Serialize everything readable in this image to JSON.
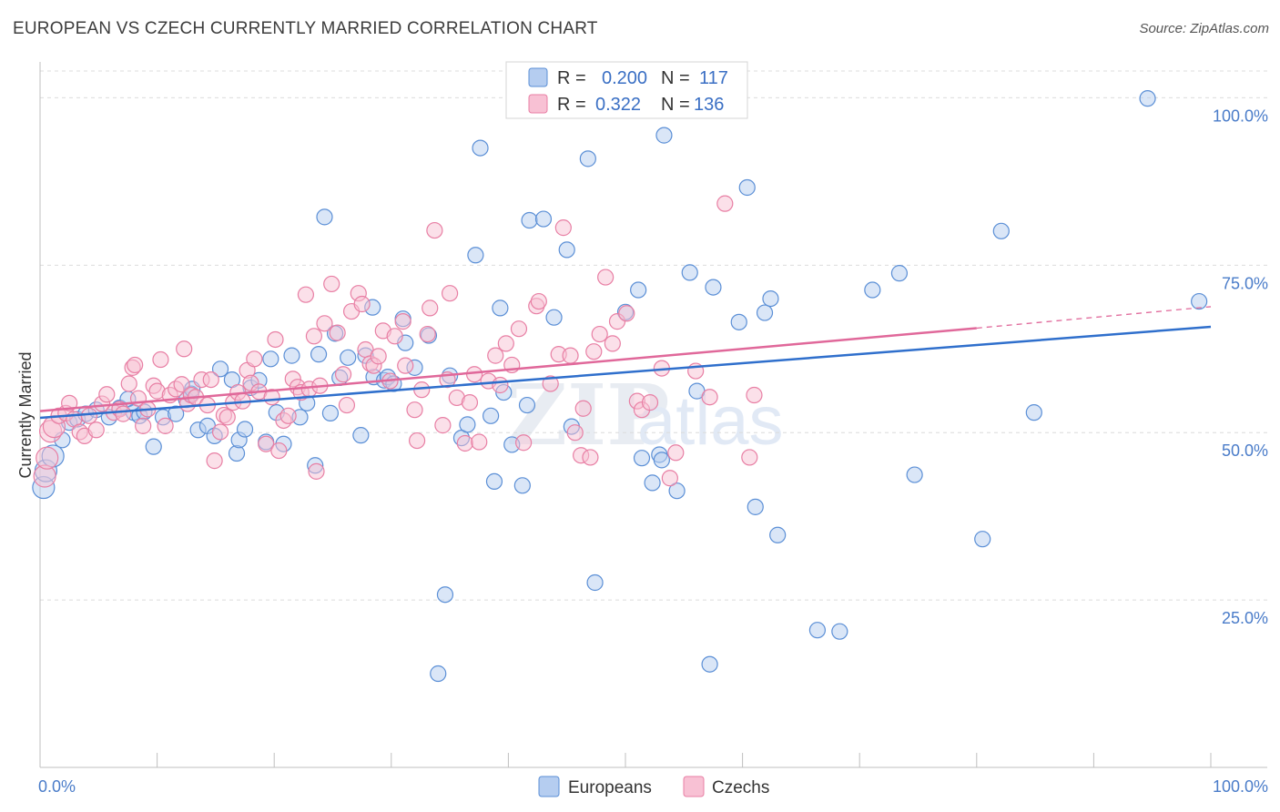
{
  "header": {
    "title": "EUROPEAN VS CZECH CURRENTLY MARRIED CORRELATION CHART",
    "source": "Source: ZipAtlas.com"
  },
  "watermark": {
    "zip": "ZIP",
    "atlas": "atlas"
  },
  "chart_data": {
    "type": "scatter",
    "title": "EUROPEAN VS CZECH CURRENTLY MARRIED CORRELATION CHART",
    "xlabel": "",
    "ylabel": "Currently Married",
    "xlim": [
      0,
      100
    ],
    "ylim": [
      0,
      104
    ],
    "x_tick_labels": [
      "0.0%",
      "100.0%"
    ],
    "y_ticks": [
      25,
      50,
      75,
      100
    ],
    "y_tick_labels": [
      "25.0%",
      "50.0%",
      "75.0%",
      "100.0%"
    ],
    "grid": true,
    "legend_position": "top-center",
    "series": [
      {
        "name": "Europeans",
        "color": "#5b8fd6",
        "fill": "#b5cdf0",
        "stats": {
          "r_label": "R =",
          "r": "0.200",
          "n_label": "N =",
          "n": "117"
        },
        "trend": {
          "x": [
            0,
            100
          ],
          "y": [
            52.2,
            65.8
          ]
        },
        "points": [
          [
            0.3,
            41.8
          ],
          [
            0.5,
            44.3
          ],
          [
            1.1,
            46.5
          ],
          [
            1.9,
            48.9
          ],
          [
            2.5,
            51.5
          ],
          [
            3.2,
            52.0
          ],
          [
            3.9,
            52.8
          ],
          [
            4.8,
            53.4
          ],
          [
            5.9,
            52.3
          ],
          [
            6.8,
            53.7
          ],
          [
            7.5,
            55.0
          ],
          [
            8.0,
            53.0
          ],
          [
            8.5,
            52.5
          ],
          [
            8.9,
            53.1
          ],
          [
            9.7,
            47.9
          ],
          [
            10.5,
            52.3
          ],
          [
            11.6,
            52.8
          ],
          [
            12.5,
            54.9
          ],
          [
            12.9,
            55.8
          ],
          [
            13.0,
            56.5
          ],
          [
            13.5,
            50.4
          ],
          [
            14.3,
            51.0
          ],
          [
            14.9,
            49.5
          ],
          [
            15.4,
            59.5
          ],
          [
            16.4,
            57.9
          ],
          [
            16.8,
            46.9
          ],
          [
            17.0,
            48.9
          ],
          [
            17.5,
            50.5
          ],
          [
            18.0,
            56.7
          ],
          [
            18.7,
            57.8
          ],
          [
            19.3,
            48.6
          ],
          [
            19.7,
            61.0
          ],
          [
            20.2,
            53.0
          ],
          [
            20.8,
            48.3
          ],
          [
            21.5,
            61.5
          ],
          [
            22.2,
            52.3
          ],
          [
            22.8,
            54.4
          ],
          [
            23.5,
            45.1
          ],
          [
            23.8,
            61.7
          ],
          [
            24.3,
            82.2
          ],
          [
            24.8,
            52.9
          ],
          [
            25.2,
            64.8
          ],
          [
            25.6,
            58.2
          ],
          [
            26.3,
            61.2
          ],
          [
            27.4,
            49.6
          ],
          [
            27.8,
            61.5
          ],
          [
            28.5,
            58.3
          ],
          [
            28.4,
            68.7
          ],
          [
            29.4,
            57.8
          ],
          [
            29.7,
            58.3
          ],
          [
            30.2,
            57.3
          ],
          [
            31.0,
            67.0
          ],
          [
            31.2,
            63.4
          ],
          [
            32.0,
            59.7
          ],
          [
            33.2,
            64.5
          ],
          [
            34.0,
            14.0
          ],
          [
            34.6,
            25.8
          ],
          [
            35.0,
            58.5
          ],
          [
            36.0,
            49.2
          ],
          [
            36.5,
            51.2
          ],
          [
            37.2,
            76.5
          ],
          [
            37.6,
            92.5
          ],
          [
            38.5,
            52.5
          ],
          [
            38.8,
            42.7
          ],
          [
            39.3,
            68.6
          ],
          [
            39.6,
            56.0
          ],
          [
            40.3,
            48.2
          ],
          [
            41.2,
            42.1
          ],
          [
            41.6,
            54.1
          ],
          [
            41.8,
            81.7
          ],
          [
            43.0,
            81.9
          ],
          [
            43.9,
            67.2
          ],
          [
            45.0,
            77.3
          ],
          [
            45.4,
            50.9
          ],
          [
            46.8,
            90.9
          ],
          [
            47.4,
            27.6
          ],
          [
            47.8,
            98.6
          ],
          [
            50.0,
            68.0
          ],
          [
            51.1,
            71.3
          ],
          [
            51.4,
            46.2
          ],
          [
            52.3,
            42.5
          ],
          [
            52.9,
            46.7
          ],
          [
            53.1,
            45.9
          ],
          [
            53.3,
            94.4
          ],
          [
            54.4,
            41.3
          ],
          [
            55.5,
            73.9
          ],
          [
            56.1,
            56.2
          ],
          [
            57.2,
            15.4
          ],
          [
            57.5,
            71.7
          ],
          [
            59.7,
            66.5
          ],
          [
            60.4,
            86.6
          ],
          [
            61.1,
            38.9
          ],
          [
            61.9,
            67.9
          ],
          [
            62.4,
            70.0
          ],
          [
            63.0,
            34.7
          ],
          [
            66.4,
            20.5
          ],
          [
            68.3,
            20.3
          ],
          [
            71.1,
            71.3
          ],
          [
            73.4,
            73.8
          ],
          [
            74.7,
            43.7
          ],
          [
            80.5,
            34.1
          ],
          [
            82.1,
            80.1
          ],
          [
            84.9,
            53.0
          ],
          [
            94.6,
            99.9
          ],
          [
            99.0,
            69.6
          ]
        ]
      },
      {
        "name": "Czechs",
        "color": "#e87fa4",
        "fill": "#f8c1d4",
        "stats": {
          "r_label": "R =",
          "r": "0.322",
          "n_label": "N =",
          "n": "136"
        },
        "trend": {
          "x": [
            0,
            80,
            100
          ],
          "y": [
            53.2,
            65.6,
            68.8
          ]
        },
        "points": [
          [
            0.4,
            43.5
          ],
          [
            0.6,
            46.2
          ],
          [
            0.9,
            50.2
          ],
          [
            1.2,
            50.9
          ],
          [
            1.6,
            52.5
          ],
          [
            2.2,
            52.9
          ],
          [
            2.5,
            54.4
          ],
          [
            2.9,
            52.0
          ],
          [
            3.4,
            50.1
          ],
          [
            3.8,
            49.5
          ],
          [
            4.2,
            52.5
          ],
          [
            4.8,
            50.4
          ],
          [
            5.3,
            54.3
          ],
          [
            5.7,
            55.7
          ],
          [
            6.3,
            53.0
          ],
          [
            6.8,
            53.5
          ],
          [
            7.1,
            52.8
          ],
          [
            7.6,
            57.3
          ],
          [
            7.9,
            59.7
          ],
          [
            8.1,
            60.1
          ],
          [
            8.4,
            55.1
          ],
          [
            8.8,
            51.0
          ],
          [
            9.2,
            53.5
          ],
          [
            9.7,
            57.0
          ],
          [
            10.0,
            56.2
          ],
          [
            10.3,
            60.9
          ],
          [
            10.7,
            51.0
          ],
          [
            11.1,
            55.6
          ],
          [
            11.6,
            56.5
          ],
          [
            12.1,
            57.2
          ],
          [
            12.3,
            62.5
          ],
          [
            12.6,
            54.3
          ],
          [
            12.9,
            55.6
          ],
          [
            13.3,
            55.3
          ],
          [
            13.8,
            57.9
          ],
          [
            14.3,
            54.1
          ],
          [
            14.6,
            57.9
          ],
          [
            14.9,
            45.8
          ],
          [
            15.4,
            50.1
          ],
          [
            15.7,
            52.6
          ],
          [
            16.0,
            52.3
          ],
          [
            16.5,
            54.5
          ],
          [
            16.9,
            56.0
          ],
          [
            17.3,
            54.7
          ],
          [
            17.7,
            59.3
          ],
          [
            18.0,
            57.4
          ],
          [
            18.3,
            61.0
          ],
          [
            18.7,
            56.1
          ],
          [
            19.3,
            48.3
          ],
          [
            19.8,
            55.3
          ],
          [
            20.1,
            63.9
          ],
          [
            20.4,
            47.3
          ],
          [
            20.8,
            51.8
          ],
          [
            21.2,
            52.5
          ],
          [
            21.6,
            58.0
          ],
          [
            22.0,
            56.8
          ],
          [
            22.3,
            56.0
          ],
          [
            22.7,
            70.6
          ],
          [
            23.0,
            56.5
          ],
          [
            23.4,
            64.4
          ],
          [
            23.6,
            44.2
          ],
          [
            23.9,
            57.0
          ],
          [
            24.3,
            66.3
          ],
          [
            24.9,
            72.2
          ],
          [
            25.4,
            64.9
          ],
          [
            25.9,
            58.7
          ],
          [
            26.2,
            54.1
          ],
          [
            26.6,
            68.1
          ],
          [
            27.2,
            70.8
          ],
          [
            27.5,
            69.2
          ],
          [
            27.8,
            62.4
          ],
          [
            28.2,
            60.3
          ],
          [
            28.5,
            60.0
          ],
          [
            28.9,
            61.4
          ],
          [
            29.3,
            65.2
          ],
          [
            29.9,
            57.7
          ],
          [
            30.3,
            64.4
          ],
          [
            31.0,
            66.6
          ],
          [
            31.2,
            60.0
          ],
          [
            32.0,
            53.4
          ],
          [
            32.2,
            48.8
          ],
          [
            32.6,
            56.4
          ],
          [
            33.1,
            64.7
          ],
          [
            33.3,
            68.6
          ],
          [
            33.7,
            80.2
          ],
          [
            34.4,
            51.1
          ],
          [
            34.8,
            57.9
          ],
          [
            35.0,
            70.8
          ],
          [
            35.6,
            55.2
          ],
          [
            36.3,
            48.4
          ],
          [
            36.7,
            54.5
          ],
          [
            37.1,
            58.7
          ],
          [
            37.5,
            48.6
          ],
          [
            38.3,
            57.7
          ],
          [
            38.9,
            61.5
          ],
          [
            39.3,
            57.1
          ],
          [
            39.8,
            63.3
          ],
          [
            40.3,
            60.1
          ],
          [
            40.9,
            65.5
          ],
          [
            41.3,
            48.5
          ],
          [
            42.4,
            68.9
          ],
          [
            42.6,
            69.6
          ],
          [
            43.6,
            57.3
          ],
          [
            44.3,
            61.7
          ],
          [
            44.7,
            80.6
          ],
          [
            45.3,
            61.5
          ],
          [
            45.7,
            50.0
          ],
          [
            46.2,
            46.6
          ],
          [
            46.4,
            53.6
          ],
          [
            47.0,
            46.3
          ],
          [
            47.3,
            62.1
          ],
          [
            47.8,
            64.7
          ],
          [
            48.3,
            73.2
          ],
          [
            48.9,
            63.3
          ],
          [
            49.3,
            66.6
          ],
          [
            50.1,
            67.8
          ],
          [
            51.0,
            54.7
          ],
          [
            51.4,
            53.4
          ],
          [
            52.1,
            54.5
          ],
          [
            53.1,
            59.6
          ],
          [
            53.8,
            43.2
          ],
          [
            54.3,
            47.0
          ],
          [
            56.0,
            59.2
          ],
          [
            57.2,
            55.3
          ],
          [
            58.5,
            84.2
          ],
          [
            60.6,
            46.3
          ],
          [
            61.0,
            55.6
          ]
        ]
      }
    ]
  },
  "legend": {
    "europeans_label": "Europeans",
    "czechs_label": "Czechs"
  }
}
